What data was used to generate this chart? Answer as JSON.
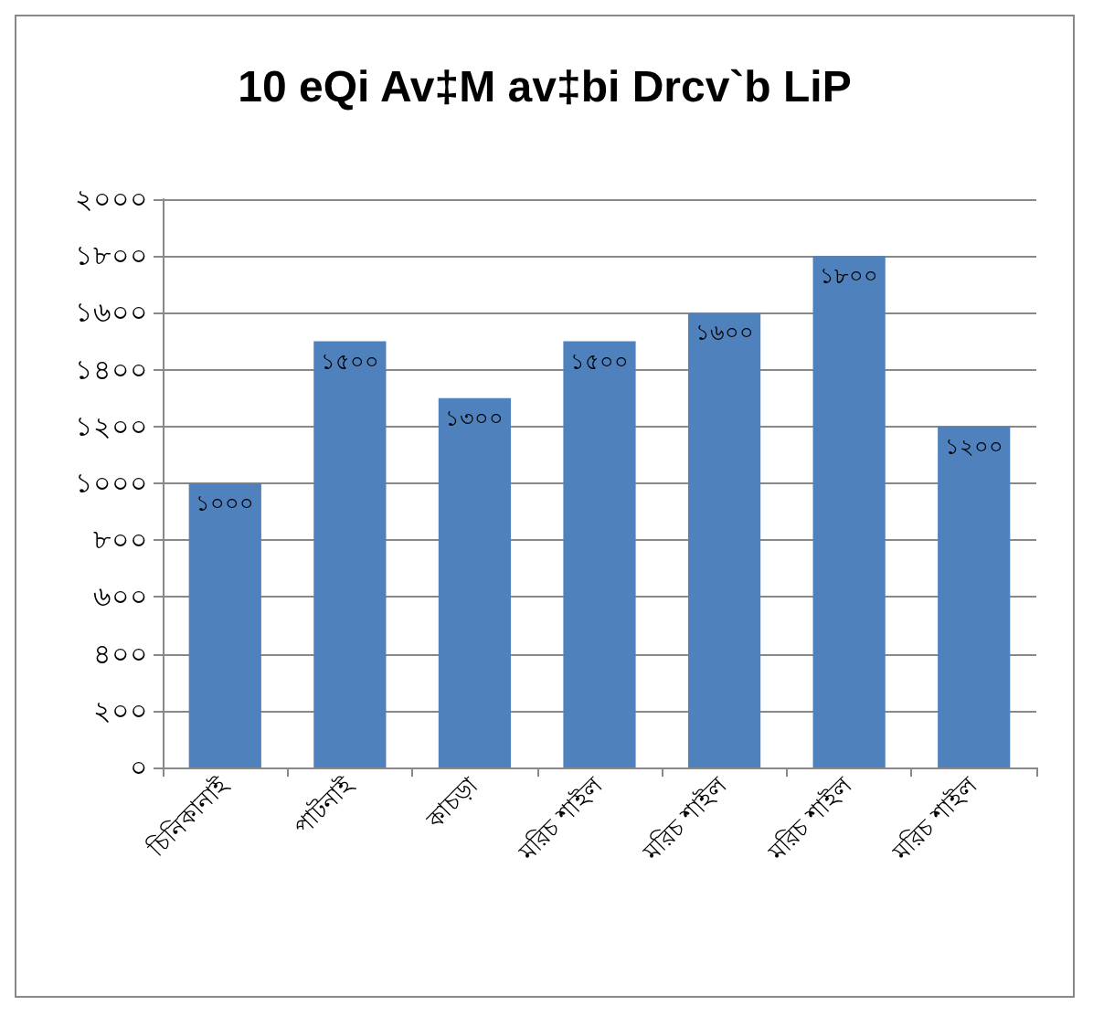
{
  "chart_data": {
    "type": "bar",
    "title": "10 eQi Av‡M av‡bi Drcv`b LiP",
    "categories": [
      "চিনিকানাই",
      "পাটনাই",
      "কাচড়া",
      "মরিচ শাইল",
      "মরিচ শাইল",
      "মরিচ শাইল",
      "মরিচ শাইল"
    ],
    "values": [
      1000,
      1500,
      1300,
      1500,
      1600,
      1800,
      1200
    ],
    "value_labels": [
      "১০০০",
      "১৫০০",
      "১৩০০",
      "১৫০০",
      "১৬০০",
      "১৮০০",
      "১২০০"
    ],
    "color": "#4f81bd",
    "ylim": [
      0,
      2000
    ],
    "yticks": [
      {
        "value": 0,
        "label": "০"
      },
      {
        "value": 200,
        "label": "২০০"
      },
      {
        "value": 400,
        "label": "৪০০"
      },
      {
        "value": 600,
        "label": "৬০০"
      },
      {
        "value": 800,
        "label": "৮০০"
      },
      {
        "value": 1000,
        "label": "১০০০"
      },
      {
        "value": 1200,
        "label": "১২০০"
      },
      {
        "value": 1400,
        "label": "১৪০০"
      },
      {
        "value": 1600,
        "label": "১৬০০"
      },
      {
        "value": 1800,
        "label": "১৮০০"
      },
      {
        "value": 2000,
        "label": "২০০০"
      }
    ],
    "grid": "y"
  }
}
